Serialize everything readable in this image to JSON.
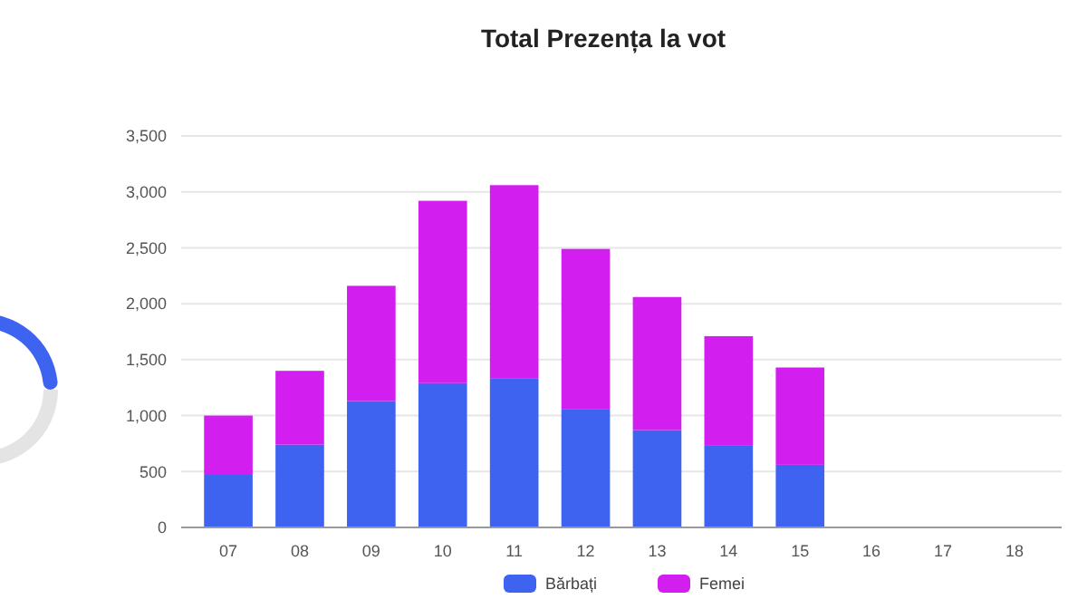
{
  "chart_data": {
    "type": "bar",
    "title": "Total Prezența la vot",
    "stacked": true,
    "categories": [
      "07",
      "08",
      "09",
      "10",
      "11",
      "12",
      "13",
      "14",
      "15",
      "16",
      "17",
      "18"
    ],
    "series": [
      {
        "name": "Bărbați",
        "color": "#3d63f0",
        "values": [
          470,
          740,
          1130,
          1290,
          1330,
          1060,
          870,
          730,
          560,
          0,
          0,
          0
        ]
      },
      {
        "name": "Femei",
        "color": "#d21ff0",
        "values": [
          530,
          660,
          1030,
          1630,
          1730,
          1430,
          1190,
          980,
          870,
          0,
          0,
          0
        ]
      }
    ],
    "ylim": [
      0,
      3500
    ],
    "yticks": [
      {
        "value": 0,
        "label": "0"
      },
      {
        "value": 500,
        "label": "500"
      },
      {
        "value": 1000,
        "label": "1,000"
      },
      {
        "value": 1500,
        "label": "1,500"
      },
      {
        "value": 2000,
        "label": "2,000"
      },
      {
        "value": 2500,
        "label": "2,500"
      },
      {
        "value": 3000,
        "label": "3,000"
      },
      {
        "value": 3500,
        "label": "3,500"
      }
    ],
    "grid": "y",
    "legend": "bottom"
  }
}
